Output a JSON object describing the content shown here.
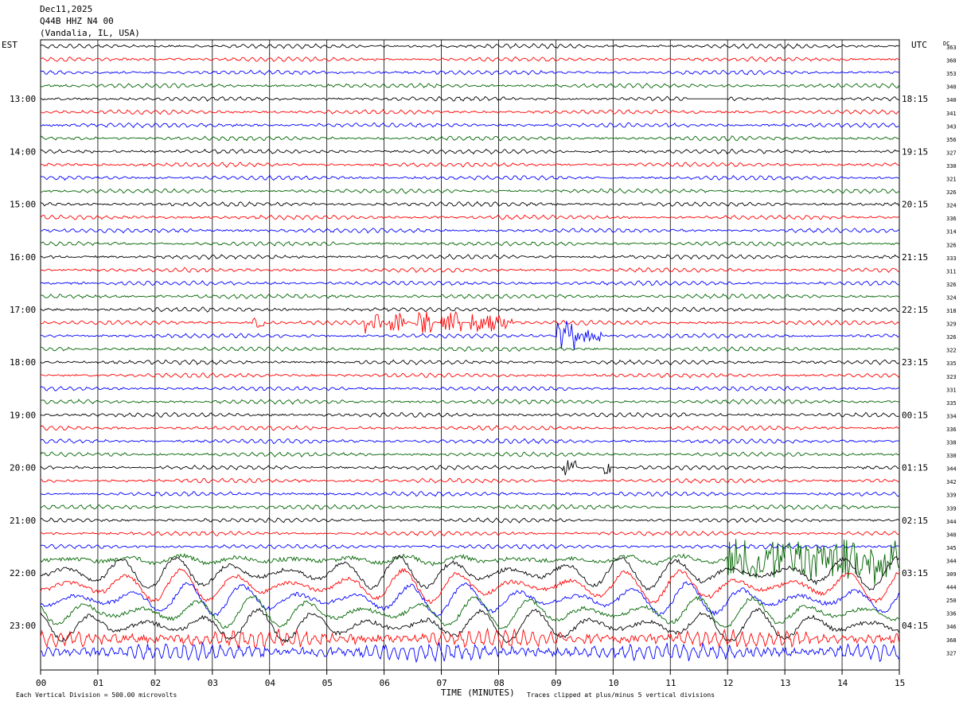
{
  "header": {
    "date": "Dec11,2025",
    "station": "Q44B HHZ N4 00",
    "location": "(Vandalia, IL, USA)"
  },
  "left_label": "EST",
  "right_label": "UTC",
  "dc_label": "DC",
  "footer": {
    "scale_text": "Each Vertical Division =  500.00 microvolts",
    "xlabel": "TIME (MINUTES)",
    "clip_text": "Traces clipped at plus/minus 5 vertical divisions"
  },
  "chart_data": {
    "type": "line",
    "title": "Q44B HHZ N4 00",
    "xlabel": "TIME (MINUTES)",
    "xlim": [
      0,
      15
    ],
    "x_ticks": [
      "00",
      "01",
      "02",
      "03",
      "04",
      "05",
      "06",
      "07",
      "08",
      "09",
      "10",
      "11",
      "12",
      "13",
      "14",
      "15"
    ],
    "grid": true,
    "trace_colors": [
      "#000000",
      "#ff0000",
      "#0000ff",
      "#006400"
    ],
    "est_hours": [
      "13:00",
      "14:00",
      "15:00",
      "16:00",
      "17:00",
      "18:00",
      "19:00",
      "20:00",
      "21:00",
      "22:00",
      "23:00"
    ],
    "utc_hours": [
      "18:15",
      "19:15",
      "20:15",
      "21:15",
      "22:15",
      "23:15",
      "00:15",
      "01:15",
      "02:15",
      "03:15",
      "04:15"
    ],
    "dc_offsets": [
      363,
      360,
      353,
      340,
      340,
      341,
      343,
      356,
      327,
      330,
      321,
      326,
      324,
      336,
      314,
      326,
      333,
      311,
      326,
      324,
      318,
      329,
      326,
      322,
      335,
      323,
      331,
      335,
      334,
      336,
      338,
      330,
      344,
      342,
      339,
      339,
      344,
      340,
      345,
      344,
      309,
      444,
      250,
      336,
      346,
      368,
      327
    ],
    "events": [
      {
        "trace": 21,
        "start_min": 3.7,
        "end_min": 3.9,
        "level": 0.5
      },
      {
        "trace": 21,
        "start_min": 5.65,
        "end_min": 5.95,
        "level": 1.4
      },
      {
        "trace": 21,
        "start_min": 6.1,
        "end_min": 6.35,
        "level": 1.2
      },
      {
        "trace": 21,
        "start_min": 6.55,
        "end_min": 6.85,
        "level": 1.2
      },
      {
        "trace": 21,
        "start_min": 7.0,
        "end_min": 7.35,
        "level": 1.3
      },
      {
        "trace": 21,
        "start_min": 7.5,
        "end_min": 8.25,
        "level": 1.1
      },
      {
        "trace": 22,
        "start_min": 9.0,
        "end_min": 9.35,
        "level": 1.7
      },
      {
        "trace": 22,
        "start_min": 9.35,
        "end_min": 9.8,
        "level": 0.6
      },
      {
        "trace": 32,
        "start_min": 9.1,
        "end_min": 9.35,
        "level": 0.9
      },
      {
        "trace": 32,
        "start_min": 9.85,
        "end_min": 9.95,
        "level": 0.8
      },
      {
        "trace": 39,
        "start_min": 12.0,
        "end_min": 15.0,
        "level": 2.2
      }
    ],
    "flatline": {
      "trace": 4,
      "start_min": 11.3,
      "end_min": 12.0
    },
    "large_amplitude_from_trace": 39
  }
}
